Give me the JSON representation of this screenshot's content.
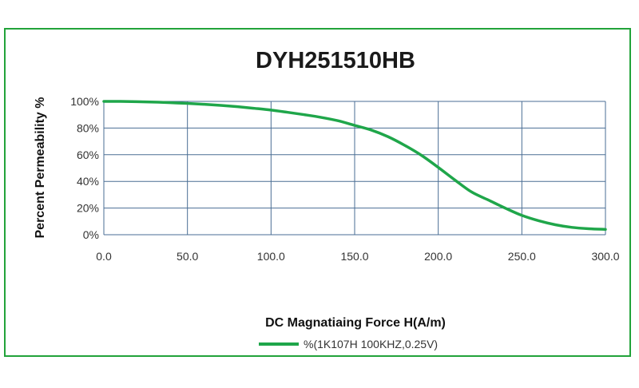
{
  "chart_data": {
    "type": "line",
    "title": "DYH251510HB",
    "xlabel": "DC Magnatiaing Force H(A/m)",
    "ylabel": "Percent Permeability %",
    "xlim": [
      0,
      300
    ],
    "ylim": [
      0,
      100
    ],
    "x_ticks": [
      "0.0",
      "50.0",
      "100.0",
      "150.0",
      "200.0",
      "250.0",
      "300.0"
    ],
    "y_ticks": [
      "0%",
      "20%",
      "40%",
      "60%",
      "80%",
      "100%"
    ],
    "grid": true,
    "legend_position": "bottom",
    "series": [
      {
        "name": "%(1K107H 100KHZ,0.25V)",
        "color": "#1fa64a",
        "x": [
          0,
          10,
          20,
          30,
          40,
          50,
          60,
          70,
          80,
          90,
          100,
          110,
          120,
          130,
          140,
          150,
          160,
          170,
          180,
          190,
          200,
          210,
          220,
          230,
          240,
          250,
          260,
          270,
          280,
          290,
          300
        ],
        "y": [
          100,
          100,
          99.8,
          99.5,
          99,
          98.5,
          97.8,
          97,
          96,
          94.8,
          93.5,
          91.8,
          90,
          88,
          85.5,
          82,
          78.5,
          73.5,
          67,
          59.5,
          50.5,
          41,
          32,
          26,
          20,
          14.5,
          10.5,
          7.5,
          5.5,
          4.5,
          4
        ]
      }
    ]
  }
}
